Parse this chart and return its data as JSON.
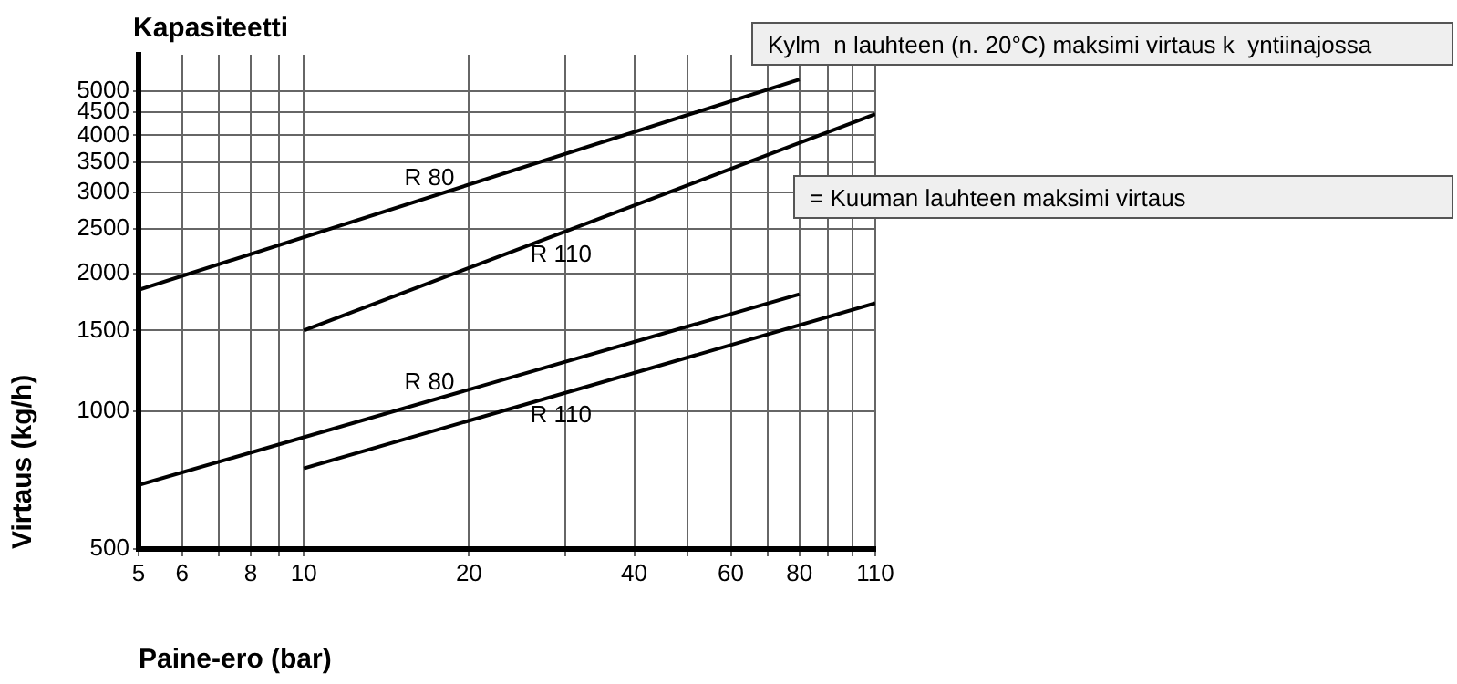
{
  "chart_data": {
    "type": "line",
    "title": "Kapasiteetti",
    "xlabel": "Paine-ero (bar)",
    "ylabel": "Virtaus (kg/h)",
    "log": "xy",
    "grid": true,
    "marker": "none",
    "line_style": "solid",
    "legend": false,
    "xlim": [
      5,
      110
    ],
    "xticks": [
      5,
      6,
      {
        "value": 7,
        "label": null
      },
      8,
      {
        "value": 9,
        "label": null
      },
      10,
      20,
      {
        "value": 30,
        "label": null
      },
      40,
      {
        "value": 50,
        "label": null
      },
      60,
      {
        "value": 70,
        "label": null
      },
      80,
      {
        "value": 90,
        "label": null
      },
      {
        "value": 100,
        "label": null
      },
      110
    ],
    "ylim": [
      500,
      6000
    ],
    "yticks": [
      500,
      1000,
      1500,
      2000,
      2500,
      3000,
      3500,
      4000,
      4500,
      5000
    ],
    "series": [
      {
        "name": "R 80",
        "color": "#000000",
        "x": [
          5,
          80
        ],
        "values": [
          1840,
          5300
        ]
      },
      {
        "name": "R 110",
        "color": "#000000",
        "x": [
          10,
          110
        ],
        "values": [
          1500,
          4450
        ]
      },
      {
        "name": "R 80",
        "color": "#000000",
        "x": [
          5,
          80
        ],
        "values": [
          690,
          1800
        ]
      },
      {
        "name": "R 110",
        "color": "#000000",
        "x": [
          10,
          110
        ],
        "values": [
          750,
          1720
        ]
      }
    ],
    "annotations": [
      "Kylm  n lauhteen (n. 20°C) maksimi virtaus k  yntiinajossa",
      "= Kuuman lauhteen maksimi virtaus"
    ]
  }
}
